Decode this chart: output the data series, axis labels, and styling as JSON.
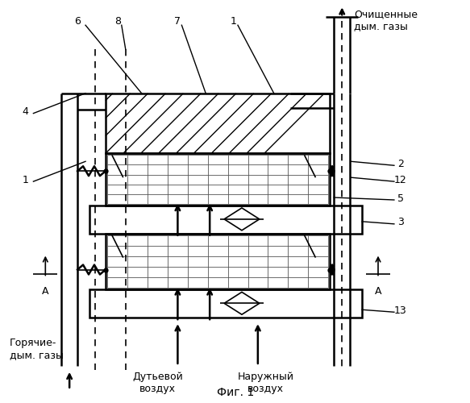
{
  "title": "Фиг. 1",
  "bg_color": "#ffffff",
  "line_color": "#000000",
  "labels": {
    "cleaned_gas": "Очищенные\nдым. газы",
    "hot_gas": "Горячие-\nдым. газы",
    "blast_air": "Дутьевой\nвоздух",
    "external_air": "Наружный\nвоздух",
    "fig": "Фиг. 1"
  }
}
